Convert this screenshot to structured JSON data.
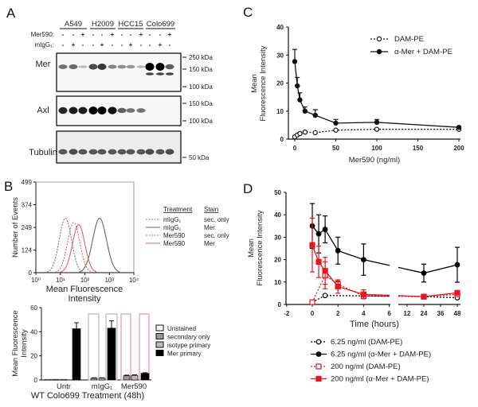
{
  "panels": {
    "a": "A",
    "b": "B",
    "c": "C",
    "d": "D"
  },
  "blot": {
    "cell_lines": [
      "A549",
      "H2009",
      "HCC15",
      "Colo699"
    ],
    "row_labels": {
      "mer590": "Mer590:",
      "migg": "mIgG₁:"
    },
    "mer590": [
      "-",
      "-",
      "+",
      "-",
      "-",
      "+",
      "-",
      "-",
      "+",
      "-",
      "-",
      "+"
    ],
    "migg": [
      "-",
      "+",
      "-",
      "-",
      "+",
      "-",
      "-",
      "+",
      "-",
      "-",
      "+",
      "-"
    ],
    "blots": [
      {
        "name": "Mer",
        "markers": [
          "250 kDa",
          "150 kDa",
          "100 kDa"
        ]
      },
      {
        "name": "Axl",
        "markers": [
          "150 kDa",
          "100 kDa"
        ]
      },
      {
        "name": "Tubulin",
        "markers": [
          "50 kDa"
        ]
      }
    ],
    "band_intensity": {
      "Mer": [
        0.4,
        0.45,
        0.02,
        0.6,
        0.7,
        0.3,
        0.25,
        0.2,
        0.05,
        1,
        1,
        0.5
      ],
      "Mer_lower": [
        0,
        0,
        0,
        0,
        0,
        0,
        0,
        0,
        0,
        0.6,
        0.6,
        0.55
      ],
      "Axl": [
        0.8,
        0.85,
        0.85,
        1,
        1,
        0.9,
        0.5,
        0.4,
        0.4,
        0,
        0,
        0
      ],
      "Tubulin": [
        0.55,
        0.6,
        0.55,
        0.55,
        0.55,
        0.55,
        0.55,
        0.55,
        0.55,
        0.6,
        0.55,
        0.6
      ]
    }
  },
  "chart_data": [
    {
      "type": "line",
      "panel": "B-histogram",
      "xlabel": [
        "Mean Fluorescence",
        "Intensity"
      ],
      "ylabel": "Number of Events",
      "x_scale": "log",
      "xlim": [
        1,
        10000
      ],
      "x_ticks": [
        "10⁰",
        "10¹",
        "10²",
        "10³",
        "10⁴"
      ],
      "ylim": [
        0,
        499
      ],
      "y_ticks": [
        "0",
        "124",
        "249",
        "374",
        "499"
      ],
      "legend_headers": [
        "Treatment",
        "Stain"
      ],
      "series": [
        {
          "treatment": "mIgG₁",
          "stain": "sec. only",
          "color": "#777777",
          "dash": true,
          "peak_mfi": 16,
          "peak_events": 300
        },
        {
          "treatment": "mIgG₁",
          "stain": "Mer",
          "color": "#666666",
          "dash": false,
          "peak_mfi": 400,
          "peak_events": 300
        },
        {
          "treatment": "Mer590",
          "stain": "sec. only",
          "color": "#e06070",
          "dash": true,
          "peak_mfi": 35,
          "peak_events": 275
        },
        {
          "treatment": "Mer590",
          "stain": "Mer",
          "color": "#e06070",
          "dash": false,
          "peak_mfi": 56,
          "peak_events": 265
        }
      ]
    },
    {
      "type": "bar",
      "panel": "B-bar",
      "ylabel": [
        "Mean Fluorescence",
        "Intensity"
      ],
      "xlabel": "WT Colo699 Treatment (48h)",
      "ylim": [
        0,
        60
      ],
      "y_ticks": [
        "0",
        "20",
        "40",
        "60"
      ],
      "categories": [
        "Untr",
        "mIgG₁",
        "Mer590"
      ],
      "series": [
        {
          "name": "Unstained",
          "color": "#ffffff",
          "values": [
            0.5,
            0,
            0
          ],
          "errors": [
            0,
            0,
            0
          ]
        },
        {
          "name": "secondary only",
          "color": "#999999",
          "values": [
            0.5,
            1.5,
            3.5
          ],
          "errors": [
            0,
            0.3,
            0.5
          ]
        },
        {
          "name": "isotype primary",
          "color": "#bbbbbb",
          "values": [
            0.5,
            1.5,
            3.8
          ],
          "errors": [
            0,
            0.3,
            0.5
          ]
        },
        {
          "name": "Mer primary",
          "color": "#000000",
          "values": [
            42.5,
            43,
            5.5
          ],
          "errors": [
            5,
            6,
            0.5
          ]
        }
      ],
      "highlight_box_colors": [
        "#aaaaaa",
        "#e08090"
      ]
    },
    {
      "type": "line",
      "panel": "C",
      "xlabel": "Mer590 (ng/ml)",
      "ylabel": [
        "Mean",
        "Fluorescence Intensity"
      ],
      "xlim": [
        0,
        200
      ],
      "x_ticks": [
        "0",
        "50",
        "100",
        "150",
        "200"
      ],
      "ylim": [
        0,
        40
      ],
      "y_ticks": [
        "0",
        "10",
        "20",
        "30",
        "40"
      ],
      "x": [
        0,
        3.125,
        6.25,
        12.5,
        25,
        50,
        100,
        200
      ],
      "series": [
        {
          "name": "DAM-PE",
          "color": "#000000",
          "open": true,
          "dash": true,
          "values": [
            0.8,
            1.5,
            2,
            2.5,
            2.3,
            3.2,
            3.5,
            3.5
          ],
          "errors": [
            0,
            0,
            0,
            0,
            0,
            0,
            0,
            0
          ]
        },
        {
          "name": "α-Mer + DAM-PE",
          "color": "#000000",
          "open": false,
          "dash": false,
          "values": [
            27.7,
            19,
            14,
            10,
            8.5,
            5.7,
            6,
            4.2
          ],
          "errors": [
            4.3,
            3,
            2.5,
            1.5,
            2,
            1.3,
            1,
            0
          ]
        }
      ]
    },
    {
      "type": "line",
      "panel": "D",
      "xlabel": "Time (hours)",
      "ylabel": [
        "Mean",
        "Fluorescence Intensity"
      ],
      "x_ticks_left": [
        "-2",
        "0",
        "2",
        "4",
        "6"
      ],
      "x_ticks_right": [
        "12",
        "24",
        "36",
        "48"
      ],
      "ylim": [
        0,
        50
      ],
      "y_ticks": [
        "0",
        "10",
        "20",
        "30",
        "40",
        "50"
      ],
      "series": [
        {
          "name": "6.25 ng/ml (DAM-PE)",
          "color": "#000000",
          "marker": "circle",
          "open": true,
          "dash": true,
          "x": [
            0,
            1,
            4,
            24,
            48
          ],
          "values": [
            1,
            4,
            3.8,
            3.5,
            3
          ],
          "errors": [
            0,
            0,
            0,
            0,
            0
          ]
        },
        {
          "name": "6.25 ng/ml (α-Mer + DAM-PE)",
          "color": "#000000",
          "marker": "circle",
          "open": false,
          "dash": false,
          "x": [
            0,
            0.5,
            1,
            2,
            4,
            24,
            48
          ],
          "values": [
            35,
            31.5,
            33.5,
            24,
            20,
            14,
            17.7
          ],
          "errors": [
            10,
            8.5,
            6,
            6,
            7,
            4,
            7.8
          ]
        },
        {
          "name": "200 ng/ml (DAM-PE)",
          "color": "#e8141c",
          "marker": "square",
          "open": true,
          "dash": true,
          "x": [
            0,
            1,
            2,
            4,
            24,
            48
          ],
          "values": [
            1,
            13,
            9,
            3.8,
            3.5,
            4.5
          ],
          "errors": [
            0,
            6,
            1.5,
            0.5,
            0,
            0.5
          ]
        },
        {
          "name": "200 ng/ml (α-Mer + DAM-PE)",
          "color": "#e8141c",
          "marker": "square",
          "open": false,
          "dash": false,
          "x": [
            0,
            0.5,
            1,
            2,
            4,
            24,
            48
          ],
          "values": [
            26.5,
            19,
            15,
            8,
            4.5,
            3.5,
            5.2
          ],
          "errors": [
            12,
            7,
            6,
            3,
            2,
            0,
            0.8
          ]
        }
      ]
    }
  ]
}
